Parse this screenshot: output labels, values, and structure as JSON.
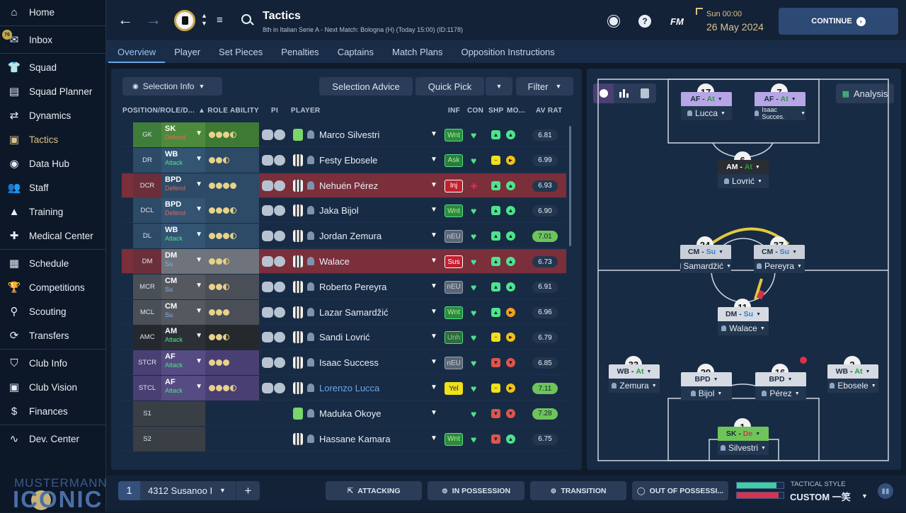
{
  "sidebar": {
    "items": [
      {
        "label": "Home",
        "icon": "home-icon",
        "glyph": "⌂"
      },
      {
        "label": "Inbox",
        "icon": "inbox-icon",
        "glyph": "✉",
        "badge": "76"
      },
      {
        "label": "Squad",
        "icon": "shirt-icon",
        "glyph": "👕"
      },
      {
        "label": "Squad Planner",
        "icon": "clipboard-icon",
        "glyph": "▤"
      },
      {
        "label": "Dynamics",
        "icon": "dynamics-icon",
        "glyph": "⇄"
      },
      {
        "label": "Tactics",
        "icon": "tactics-board-icon",
        "glyph": "▣"
      },
      {
        "label": "Data Hub",
        "icon": "data-hub-icon",
        "glyph": "◉"
      },
      {
        "label": "Staff",
        "icon": "staff-icon",
        "glyph": "👥"
      },
      {
        "label": "Training",
        "icon": "training-cone-icon",
        "glyph": "▲"
      },
      {
        "label": "Medical Center",
        "icon": "medical-kit-icon",
        "glyph": "✚"
      },
      {
        "label": "Schedule",
        "icon": "calendar-icon",
        "glyph": "▦"
      },
      {
        "label": "Competitions",
        "icon": "trophy-icon",
        "glyph": "🏆"
      },
      {
        "label": "Scouting",
        "icon": "magnifier-icon",
        "glyph": "⚲"
      },
      {
        "label": "Transfers",
        "icon": "transfer-arrows-icon",
        "glyph": "⟳"
      },
      {
        "label": "Club Info",
        "icon": "shield-icon",
        "glyph": "⛉"
      },
      {
        "label": "Club Vision",
        "icon": "briefcase-icon",
        "glyph": "▣"
      },
      {
        "label": "Finances",
        "icon": "money-icon",
        "glyph": "$"
      },
      {
        "label": "Dev. Center",
        "icon": "dev-chart-icon",
        "glyph": "∿"
      }
    ],
    "logo_top": "MUSTERMANN",
    "logo_bottom": "ICONIC"
  },
  "header": {
    "title": "Tactics",
    "subtitle": "8th in Italian Serie A - Next Match: Bologna (H) (Today 15:00) (ID:1178)",
    "fm_label": "FM",
    "day_time": "Sun 00:00",
    "date": "26 May 2024",
    "continue_label": "CONTINUE"
  },
  "tabs": [
    "Overview",
    "Player",
    "Set Pieces",
    "Penalties",
    "Captains",
    "Match Plans",
    "Opposition Instructions"
  ],
  "controls": {
    "selection_info": "Selection Info",
    "selection_advice": "Selection Advice",
    "quick_pick": "Quick Pick",
    "filter": "Filter",
    "analysis": "Analysis"
  },
  "columns": {
    "position": "POSITION/ROLE/D...",
    "role_ability": "ROLE ABILITY",
    "pi": "PI",
    "player": "PLAYER",
    "inf": "INF",
    "con": "CON",
    "shp": "SHP",
    "mo": "MO...",
    "av_rat": "AV RAT"
  },
  "rows": [
    {
      "pos": "GK",
      "role": "SK",
      "duty": "Defend",
      "dots": 3,
      "half": true,
      "name": "Marco Silvestri",
      "inf": "Wnt",
      "rat": "6.81",
      "rowbg": "",
      "posbg": "#3f7d3a",
      "rolebg": "#4e8a3c",
      "abilbg": "#3e7a34",
      "dutycolor": "#e06a5a",
      "kit": "green"
    },
    {
      "pos": "DR",
      "role": "WB",
      "duty": "Attack",
      "dots": 2,
      "half": true,
      "name": "Festy Ebosele",
      "inf": "Ask",
      "rat": "6.99",
      "rowbg": "",
      "posbg": "#2d4a66",
      "rolebg": "#335473",
      "abilbg": "#2d4a66",
      "dutycolor": "#4ee38c",
      "kit": "stripe"
    },
    {
      "pos": "DCR",
      "role": "BPD",
      "duty": "Defend",
      "dots": 4,
      "half": false,
      "name": "Nehuén Pérez",
      "inf": "Inj",
      "rat": "6.93",
      "rowbg": "#7a2f3a",
      "posbg": "#6b2f3a",
      "rolebg": "#2d4a66",
      "abilbg": "#2d4a66",
      "dutycolor": "#e06a5a",
      "kit": "stripe"
    },
    {
      "pos": "DCL",
      "role": "BPD",
      "duty": "Defend",
      "dots": 3,
      "half": true,
      "name": "Jaka Bijol",
      "inf": "Wnt",
      "rat": "6.90",
      "rowbg": "",
      "posbg": "#2d4a66",
      "rolebg": "#335473",
      "abilbg": "#2d4a66",
      "dutycolor": "#e06a5a",
      "kit": "stripe"
    },
    {
      "pos": "DL",
      "role": "WB",
      "duty": "Attack",
      "dots": 3,
      "half": true,
      "name": "Jordan Zemura",
      "inf": "nEU",
      "rat": "7.01",
      "rowbg": "",
      "posbg": "#2d4a66",
      "rolebg": "#335473",
      "abilbg": "#2d4a66",
      "dutycolor": "#4ee38c",
      "kit": "stripe"
    },
    {
      "pos": "DM",
      "role": "DM",
      "duty": "Su",
      "dots": 2,
      "half": true,
      "name": "Walace",
      "inf": "Sus",
      "rat": "6.73",
      "rowbg": "#7a2f3a",
      "posbg": "#6b2f3a",
      "rolebg": "#6f747c",
      "abilbg": "#6f747c",
      "dutycolor": "#7fb4ff",
      "kit": "stripe"
    },
    {
      "pos": "MCR",
      "role": "CM",
      "duty": "Su",
      "dots": 2,
      "half": true,
      "name": "Roberto Pereyra",
      "inf": "nEU",
      "rat": "6.91",
      "rowbg": "",
      "posbg": "#4a4f57",
      "rolebg": "#55595f",
      "abilbg": "#4a4f57",
      "dutycolor": "#7fb4ff",
      "kit": "stripe"
    },
    {
      "pos": "MCL",
      "role": "CM",
      "duty": "Su",
      "dots": 3,
      "half": false,
      "name": "Lazar Samardžić",
      "inf": "Wnt",
      "rat": "6.96",
      "rowbg": "",
      "posbg": "#4a4f57",
      "rolebg": "#55595f",
      "abilbg": "#4a4f57",
      "dutycolor": "#7fb4ff",
      "kit": "stripe"
    },
    {
      "pos": "AMC",
      "role": "AM",
      "duty": "Attack",
      "dots": 2,
      "half": true,
      "name": "Sandi Lovrić",
      "inf": "Unh",
      "rat": "6.79",
      "rowbg": "",
      "posbg": "#25282d",
      "rolebg": "#2c3036",
      "abilbg": "#25282d",
      "dutycolor": "#4ee38c",
      "kit": "stripe"
    },
    {
      "pos": "STCR",
      "role": "AF",
      "duty": "Attack",
      "dots": 3,
      "half": false,
      "name": "Isaac Success",
      "inf": "nEU",
      "rat": "6.85",
      "rowbg": "",
      "posbg": "#4a3f73",
      "rolebg": "#564b82",
      "abilbg": "#4a3f73",
      "dutycolor": "#4ee38c",
      "kit": "stripe"
    },
    {
      "pos": "STCL",
      "role": "AF",
      "duty": "Attack",
      "dots": 3,
      "half": true,
      "name": "Lorenzo Lucca",
      "inf": "Yel",
      "rat": "7.11",
      "rowbg": "",
      "posbg": "#4a3f73",
      "rolebg": "#564b82",
      "abilbg": "#4a3f73",
      "dutycolor": "#4ee38c",
      "kit": "stripe",
      "link": true
    },
    {
      "pos": "S1",
      "role": "",
      "duty": "",
      "dots": 0,
      "half": false,
      "name": "Maduka Okoye",
      "inf": "",
      "rat": "7.28",
      "rowbg": "",
      "posbg": "#3a3f46",
      "rolebg": "#3a3f46",
      "abilbg": "",
      "dutycolor": "#fff",
      "kit": "green"
    },
    {
      "pos": "S2",
      "role": "",
      "duty": "",
      "dots": 0,
      "half": false,
      "name": "Hassane Kamara",
      "inf": "Wnt",
      "rat": "6.75",
      "rowbg": "",
      "posbg": "#3a3f46",
      "rolebg": "#3a3f46",
      "abilbg": "",
      "dutycolor": "#fff",
      "kit": "stripe"
    }
  ],
  "pitch": {
    "players": [
      {
        "num": "17",
        "role": "AF",
        "duty": "At",
        "name": "Lucca",
        "style": "purple"
      },
      {
        "num": "7",
        "role": "AF",
        "duty": "At",
        "name": "Isaac Succes.",
        "style": "purple"
      },
      {
        "num": "6",
        "role": "AM",
        "duty": "At",
        "name": "Lovrić",
        "style": "dark"
      },
      {
        "num": "24",
        "role": "CM",
        "duty": "Su",
        "name": "Samardžić",
        "style": "gray"
      },
      {
        "num": "37",
        "role": "CM",
        "duty": "Su",
        "name": "Pereyra",
        "style": "gray"
      },
      {
        "num": "11",
        "role": "DM",
        "duty": "Su",
        "name": "Walace",
        "style": "light"
      },
      {
        "num": "33",
        "role": "WB",
        "duty": "At",
        "name": "Zemura",
        "style": "light"
      },
      {
        "num": "29",
        "role": "BPD",
        "duty": "",
        "name": "Bijol",
        "style": "light"
      },
      {
        "num": "16",
        "role": "BPD",
        "duty": "",
        "name": "Pérez",
        "style": "light"
      },
      {
        "num": "2",
        "role": "WB",
        "duty": "At",
        "name": "Ebosele",
        "style": "light"
      },
      {
        "num": "1",
        "role": "SK",
        "duty": "De",
        "name": "Silvestri",
        "style": "green"
      }
    ]
  },
  "bottom": {
    "slot": "1",
    "tactic_name": "4312 Susanoo I",
    "attacking": "ATTACKING",
    "in_possession": "IN POSSESSION",
    "transition": "TRANSITION",
    "out_of_possession": "OUT OF POSSESSI...",
    "tactical_style_label": "TACTICAL STYLE",
    "tactical_style_value": "CUSTOM 一笑"
  },
  "colors": {
    "accent": "#6aa7e6",
    "gold": "#d9c38a",
    "green": "#4ee38c",
    "red": "#e06a5a"
  }
}
